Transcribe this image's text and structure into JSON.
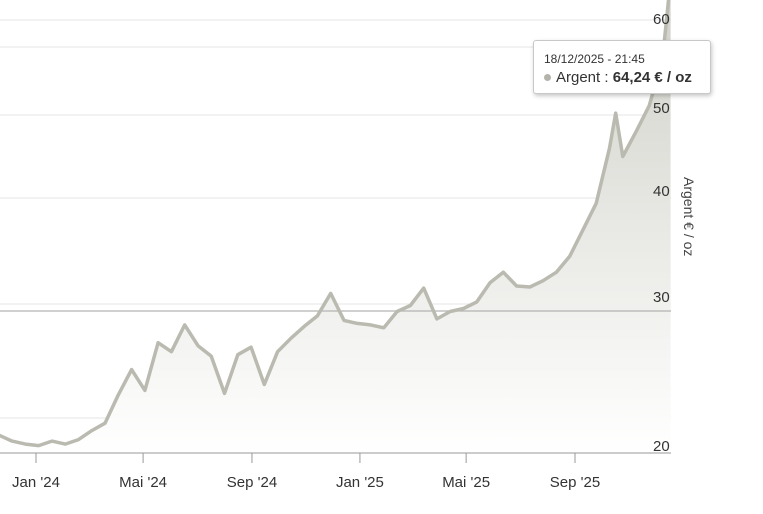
{
  "chart_data": {
    "type": "area",
    "x_unit": "date",
    "x": [
      "2023-10-21",
      "2023-11-05",
      "2023-11-20",
      "2023-12-05",
      "2023-12-20",
      "2024-01-04",
      "2024-01-19",
      "2024-02-03",
      "2024-02-18",
      "2024-03-04",
      "2024-03-19",
      "2024-04-03",
      "2024-04-18",
      "2024-05-03",
      "2024-05-18",
      "2024-06-02",
      "2024-06-17",
      "2024-07-02",
      "2024-07-17",
      "2024-08-01",
      "2024-08-16",
      "2024-08-31",
      "2024-09-15",
      "2024-09-30",
      "2024-10-15",
      "2024-10-30",
      "2024-11-14",
      "2024-11-29",
      "2024-12-14",
      "2024-12-29",
      "2025-01-13",
      "2025-01-28",
      "2025-02-12",
      "2025-02-27",
      "2025-03-14",
      "2025-03-29",
      "2025-04-13",
      "2025-04-28",
      "2025-05-13",
      "2025-05-28",
      "2025-06-12",
      "2025-06-27",
      "2025-07-12",
      "2025-07-27",
      "2025-08-11",
      "2025-08-26",
      "2025-09-10",
      "2025-09-25",
      "2025-10-10",
      "2025-10-17",
      "2025-10-25",
      "2025-11-09",
      "2025-11-24",
      "2025-12-09",
      "2025-12-18"
    ],
    "values": [
      21.2,
      21.6,
      21.2,
      20.8,
      20.6,
      20.5,
      20.8,
      20.6,
      20.9,
      21.5,
      22.0,
      23.9,
      25.6,
      24.2,
      27.4,
      26.8,
      28.6,
      27.2,
      26.5,
      24.0,
      26.6,
      27.1,
      24.6,
      26.8,
      27.7,
      28.5,
      29.2,
      31.0,
      28.9,
      28.7,
      28.6,
      28.4,
      29.5,
      29.9,
      31.5,
      29.0,
      29.5,
      29.7,
      30.2,
      32.0,
      33.0,
      31.7,
      31.6,
      32.2,
      33.0,
      34.5,
      37.0,
      39.5,
      46.0,
      50.2,
      45.0,
      48.0,
      51.0,
      56.0,
      64.24
    ],
    "ylabel": "Argent € / oz",
    "yticks": [
      20,
      30,
      40,
      50,
      60
    ],
    "ytick_labels": [
      "20",
      "30",
      "40",
      "50",
      "60"
    ],
    "xticks": [
      "2024-01-01",
      "2024-05-01",
      "2024-09-01",
      "2025-01-01",
      "2025-05-01",
      "2025-09-01"
    ],
    "xtick_labels": [
      "Jan '24",
      "Mai '24",
      "Sep '24",
      "Jan '25",
      "Mai '25",
      "Sep '25"
    ],
    "y_axis_side": "right",
    "y_scale": "nonlinear",
    "grid": true,
    "colors": {
      "line": "#babab0",
      "fill_top": "#cfcfc7",
      "fill_bottom": "#ffffff",
      "grid": "#e4e4e4",
      "reference_line": "#b3b3b3",
      "marker": "#c4c4bc"
    },
    "tooltip": {
      "date": "18/12/2025 - 21:45",
      "series_name": "Argent",
      "separator": ":",
      "value_text": "64,24 € / oz",
      "dot_color": "#b3b3ac"
    }
  }
}
